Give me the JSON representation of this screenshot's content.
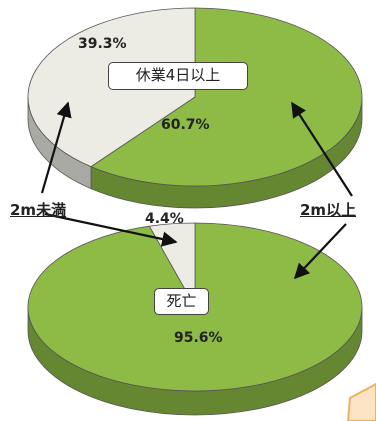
{
  "chart_data": [
    {
      "type": "pie",
      "title": "休業4日以上",
      "categories": [
        "2m以上",
        "2m未満"
      ],
      "values": [
        60.7,
        39.3
      ],
      "value_labels": [
        "60.7%",
        "39.3%"
      ],
      "colors": [
        "#8dbb46",
        "#ecece4"
      ]
    },
    {
      "type": "pie",
      "title": "死亡",
      "categories": [
        "2m以上",
        "2m未満"
      ],
      "values": [
        95.6,
        4.4
      ],
      "value_labels": [
        "95.6%",
        "4.4%"
      ],
      "colors": [
        "#8dbb46",
        "#ecece4"
      ]
    }
  ],
  "callouts": {
    "left": "2m未満",
    "right": "2m以上"
  }
}
